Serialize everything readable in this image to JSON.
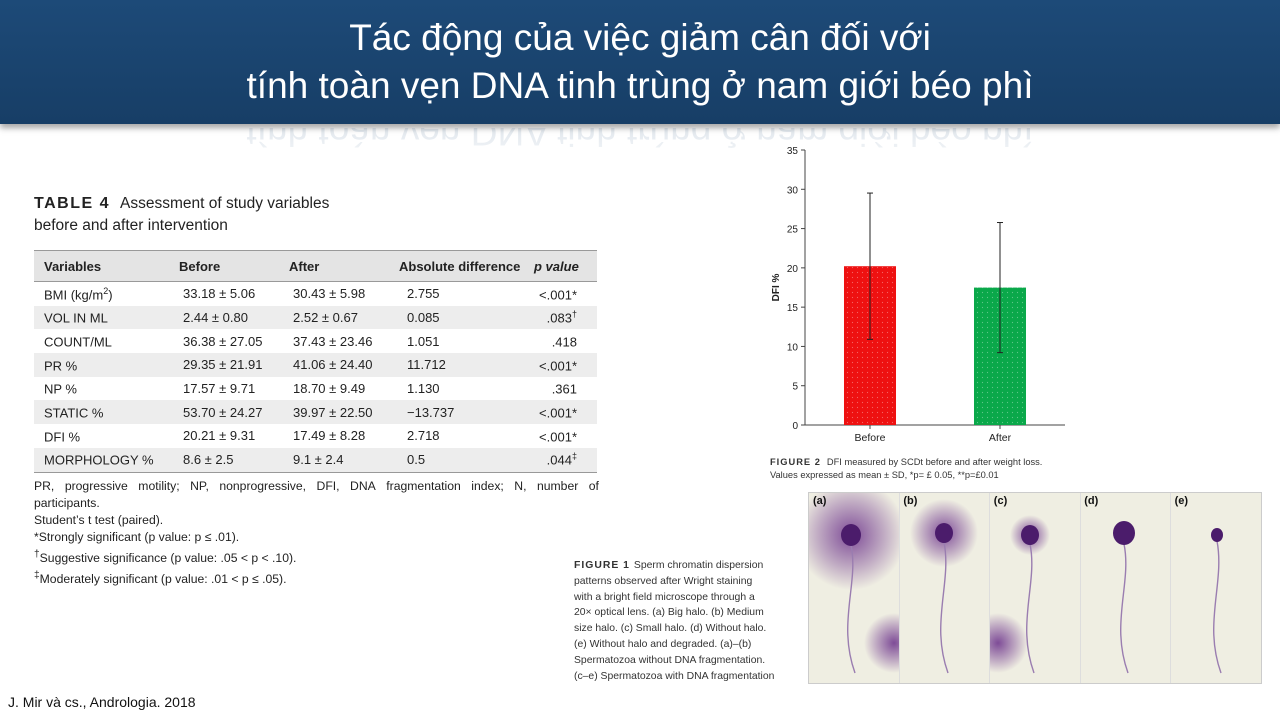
{
  "slide": {
    "title_line1": "Tác động của việc giảm cân đối với",
    "title_line2": "tính toàn vẹn DNA tinh trùng ở nam giới béo phì",
    "source": "J. Mir và cs., Andrologia. 2018"
  },
  "table": {
    "label": "TABLE 4",
    "title_line1": "Assessment of study variables",
    "title_line2": "before and after intervention",
    "headers": [
      "Variables",
      "Before",
      "After",
      "Absolute difference",
      "p value"
    ],
    "rows": [
      {
        "var": "BMI (kg/m",
        "sup": "2",
        "var_tail": ")",
        "before": "33.18 ± 5.06",
        "after": "30.43 ± 5.98",
        "diff": "2.755",
        "p": "<.001*",
        "p_sup": ""
      },
      {
        "var": "VOL IN ML",
        "sup": "",
        "var_tail": "",
        "before": "2.44 ± 0.80",
        "after": "2.52 ± 0.67",
        "diff": "0.085",
        "p": ".083",
        "p_sup": "†"
      },
      {
        "var": "COUNT/ML",
        "sup": "",
        "var_tail": "",
        "before": "36.38 ± 27.05",
        "after": "37.43 ± 23.46",
        "diff": "1.051",
        "p": ".418",
        "p_sup": ""
      },
      {
        "var": "PR %",
        "sup": "",
        "var_tail": "",
        "before": "29.35 ± 21.91",
        "after": "41.06 ± 24.40",
        "diff": "11.712",
        "p": "<.001*",
        "p_sup": ""
      },
      {
        "var": "NP %",
        "sup": "",
        "var_tail": "",
        "before": "17.57 ± 9.71",
        "after": "18.70 ± 9.49",
        "diff": "1.130",
        "p": ".361",
        "p_sup": ""
      },
      {
        "var": "STATIC %",
        "sup": "",
        "var_tail": "",
        "before": "53.70 ± 24.27",
        "after": "39.97 ± 22.50",
        "diff": "−13.737",
        "p": "<.001*",
        "p_sup": ""
      },
      {
        "var": "DFI %",
        "sup": "",
        "var_tail": "",
        "before": "20.21 ± 9.31",
        "after": "17.49 ± 8.28",
        "diff": "2.718",
        "p": "<.001*",
        "p_sup": ""
      },
      {
        "var": "MORPHOLOGY %",
        "sup": "",
        "var_tail": "",
        "before": "8.6 ± 2.5",
        "after": "9.1 ± 2.4",
        "diff": "0.5",
        "p": ".044",
        "p_sup": "‡"
      }
    ],
    "footnote_line1": "PR, progressive motility; NP, nonprogressive, DFI, DNA fragmentation index; N, number of",
    "footnote_line1_words": [
      "PR,",
      "progressive",
      "motility;",
      "NP,",
      "nonprogressive,",
      "DFI,",
      "DNA",
      "fragmentation",
      "index;",
      "N,",
      "number",
      "of"
    ],
    "footnote_line2": "participants.",
    "footnote_line3": "Student’s t test (paired).",
    "footnote_line4": "*Strongly significant (p value: p ≤ .01).",
    "footnote_line5_mark": "†",
    "footnote_line5": "Suggestive significance (p value: .05 < p < .10).",
    "footnote_line6_mark": "‡",
    "footnote_line6": "Moderately significant (p value: .01 < p ≤ .05)."
  },
  "chart_data": {
    "type": "bar",
    "categories": [
      "Before",
      "After"
    ],
    "values": [
      20.21,
      17.49
    ],
    "error": [
      9.31,
      8.28
    ],
    "colors": [
      "#ee1111",
      "#0aa84a"
    ],
    "ylabel": "DFI %",
    "ylim": [
      0,
      35
    ],
    "yticks": [
      0,
      5,
      10,
      15,
      20,
      25,
      30,
      35
    ],
    "grid": false
  },
  "figure2": {
    "label": "FIGURE 2",
    "caption_line1": "DFI measured by SCDt before and after weight loss.",
    "caption_line2": "Values expressed as mean ± SD, *p= £ 0.05, **p=£0.01"
  },
  "figure1": {
    "label": "FIGURE 1",
    "caption_lines": [
      "Sperm chromatin dispersion",
      "patterns observed after Wright staining",
      "with a bright field microscope through a",
      "20× optical lens. (a) Big halo. (b) Medium",
      "size halo. (c) Small halo. (d) Without halo.",
      "(e) Without halo and degraded. (a)–(b)",
      "Spermatozoa without DNA fragmentation.",
      "(c–e) Spermatozoa with DNA fragmentation"
    ],
    "panels": [
      "(a)",
      "(b)",
      "(c)",
      "(d)",
      "(e)"
    ],
    "stain_color": "#6a2f8a"
  }
}
